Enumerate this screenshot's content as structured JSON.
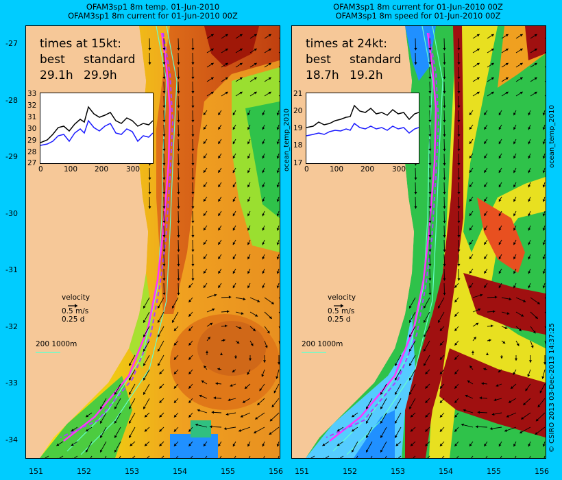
{
  "panels": [
    {
      "title_line1": "OFAM3sp1 8m temp. 01-Jun-2010",
      "title_line2": "OFAM3sp1 8m current for 01-Jun-2010 00Z",
      "side_label": "",
      "times_header": "times at 15kt:",
      "best_label": "best",
      "standard_label": "standard",
      "best_value": "29.1h",
      "standard_value": "29.9h",
      "inset_yticks": [
        "33",
        "32",
        "31",
        "30",
        "29",
        "28",
        "27"
      ],
      "inset_xticks": [
        "0",
        "100",
        "200",
        "300"
      ],
      "velocity_label": "velocity",
      "velocity_speed": "0.5 m/s",
      "velocity_time": "0.25 d",
      "depth_scale": "200  1000m"
    },
    {
      "title_line1": "OFAM3sp1 8m current for 01-Jun-2010 00Z",
      "title_line2": "OFAM3sp1 8m speed for 01-Jun-2010 00Z",
      "side_label": "ocean_temp_2010",
      "times_header": "times at 24kt:",
      "best_label": "best",
      "standard_label": "standard",
      "best_value": "18.7h",
      "standard_value": "19.2h",
      "inset_yticks": [
        "21",
        "20",
        "19",
        "18",
        "17"
      ],
      "inset_xticks": [
        "0",
        "100",
        "200",
        "300"
      ],
      "velocity_label": "velocity",
      "velocity_speed": "0.5 m/s",
      "velocity_time": "0.25 d",
      "depth_scale": "200  1000m"
    }
  ],
  "latitude_ticks": [
    "-27",
    "-28",
    "-29",
    "-30",
    "-31",
    "-32",
    "-33",
    "-34"
  ],
  "longitude_ticks": [
    "151",
    "152",
    "153",
    "154",
    "155",
    "156"
  ],
  "right_margin_label": "ocean_temp_2010",
  "copyright": "© CSIRO 2013   03-Dec-2013 14:37:25",
  "colors": {
    "background": "#00ccff",
    "land": "#f6c898",
    "route": "#ff33ff",
    "route_alt": "#aa44ff",
    "isobath": "#66ffcc",
    "inset_black": "#000000",
    "inset_blue": "#1a1aff"
  }
}
